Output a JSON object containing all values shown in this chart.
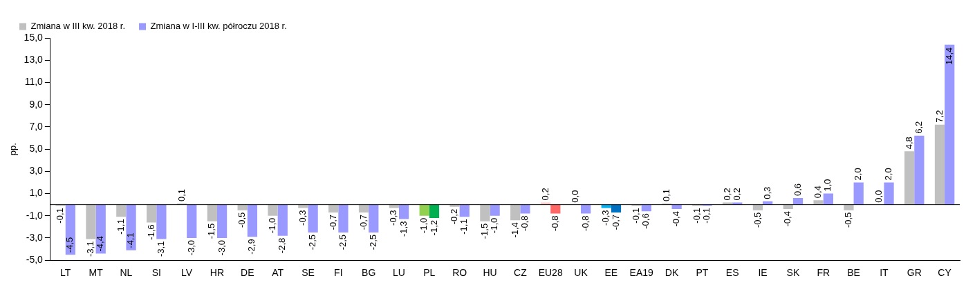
{
  "chart_data": {
    "type": "bar",
    "ylabel": "pp.",
    "categories": [
      "LT",
      "MT",
      "NL",
      "SI",
      "LV",
      "HR",
      "DE",
      "AT",
      "SE",
      "FI",
      "BG",
      "LU",
      "PL",
      "RO",
      "HU",
      "CZ",
      "EU28",
      "UK",
      "EE",
      "EA19",
      "DK",
      "PT",
      "ES",
      "IE",
      "SK",
      "FR",
      "BE",
      "IT",
      "GR",
      "CY"
    ],
    "series": [
      {
        "name": "Zmiana w III kw. 2018 r.",
        "color": "#c0c0c0",
        "colors": [
          "#c0c0c0",
          "#c0c0c0",
          "#c0c0c0",
          "#c0c0c0",
          "#c0c0c0",
          "#c0c0c0",
          "#c0c0c0",
          "#c0c0c0",
          "#c0c0c0",
          "#c0c0c0",
          "#c0c0c0",
          "#c0c0c0",
          "#92d050",
          "#c0c0c0",
          "#c0c0c0",
          "#c0c0c0",
          "#ffcccc",
          "#c0c0c0",
          "#00b0f0",
          "#c0c0c0",
          "#c0c0c0",
          "#c0c0c0",
          "#c0c0c0",
          "#c0c0c0",
          "#c0c0c0",
          "#c0c0c0",
          "#c0c0c0",
          "#c0c0c0",
          "#c0c0c0",
          "#c0c0c0"
        ],
        "values": [
          -0.1,
          -3.1,
          -1.1,
          -1.6,
          0.1,
          -1.5,
          -0.5,
          -1.0,
          -0.3,
          -0.7,
          -0.7,
          -0.3,
          -1.0,
          -0.2,
          -1.5,
          -1.4,
          0.2,
          0.0,
          -0.3,
          -0.1,
          0.1,
          -0.1,
          0.2,
          -0.5,
          -0.4,
          0.4,
          -0.5,
          0.0,
          4.8,
          7.2
        ],
        "value_labels": [
          "-0,1",
          "-3,1",
          "-1,1",
          "-1,6",
          "0,1",
          "-1,5",
          "-0,5",
          "-1,0",
          "-0,3",
          "-0,7",
          "-0,7",
          "-0,3",
          "-1,0",
          "-0,2",
          "-1,5",
          "-1,4",
          "0,2",
          "0,0",
          "-0,3",
          "-0,1",
          "0,1",
          "-0,1",
          "0,2",
          "-0,5",
          "-0,4",
          "0,4",
          "-0,5",
          "0,0",
          "4,8",
          "7,2"
        ]
      },
      {
        "name": "Zmiana w I-III kw. półroczu 2018 r.",
        "color": "#9999ff",
        "colors": [
          "#9999ff",
          "#9999ff",
          "#9999ff",
          "#9999ff",
          "#9999ff",
          "#9999ff",
          "#9999ff",
          "#9999ff",
          "#9999ff",
          "#9999ff",
          "#9999ff",
          "#9999ff",
          "#00b050",
          "#9999ff",
          "#9999ff",
          "#9999ff",
          "#ff6666",
          "#9999ff",
          "#0070c0",
          "#9999ff",
          "#9999ff",
          "#9999ff",
          "#9999ff",
          "#9999ff",
          "#9999ff",
          "#9999ff",
          "#9999ff",
          "#9999ff",
          "#9999ff",
          "#9999ff"
        ],
        "values": [
          -4.5,
          -4.4,
          -4.1,
          -3.1,
          -3.0,
          -3.0,
          -2.9,
          -2.8,
          -2.5,
          -2.5,
          -2.5,
          -1.3,
          -1.2,
          -1.1,
          -1.0,
          -0.8,
          -0.8,
          -0.8,
          -0.7,
          -0.6,
          -0.4,
          -0.1,
          0.2,
          0.3,
          0.6,
          1.0,
          2.0,
          2.0,
          6.2,
          14.4
        ],
        "value_labels": [
          "-4,5",
          "-4,4",
          "-4,1",
          "-3,1",
          "-3,0",
          "-3,0",
          "-2,9",
          "-2,8",
          "-2,5",
          "-2,5",
          "-2,5",
          "-1,3",
          "-1,2",
          "-1,1",
          "-1,0",
          "-0,8",
          "-0,8",
          "-0,8",
          "-0,7",
          "-0,6",
          "-0,4",
          "-0,1",
          "0,2",
          "0,3",
          "0,6",
          "1,0",
          "2,0",
          "2,0",
          "6,2",
          "14,4"
        ]
      }
    ],
    "ylim": [
      -5,
      15
    ],
    "yticks": [
      {
        "value": -5,
        "label": "-5,0"
      },
      {
        "value": -3,
        "label": "-3,0"
      },
      {
        "value": -1,
        "label": "-1,0"
      },
      {
        "value": 1,
        "label": "1,0"
      },
      {
        "value": 3,
        "label": "3,0"
      },
      {
        "value": 5,
        "label": "5,0"
      },
      {
        "value": 7,
        "label": "7,0"
      },
      {
        "value": 9,
        "label": "9,0"
      },
      {
        "value": 11,
        "label": "11,0"
      },
      {
        "value": 13,
        "label": "13,0"
      },
      {
        "value": 15,
        "label": "15,0"
      }
    ],
    "legend": "top left",
    "grid": false
  }
}
